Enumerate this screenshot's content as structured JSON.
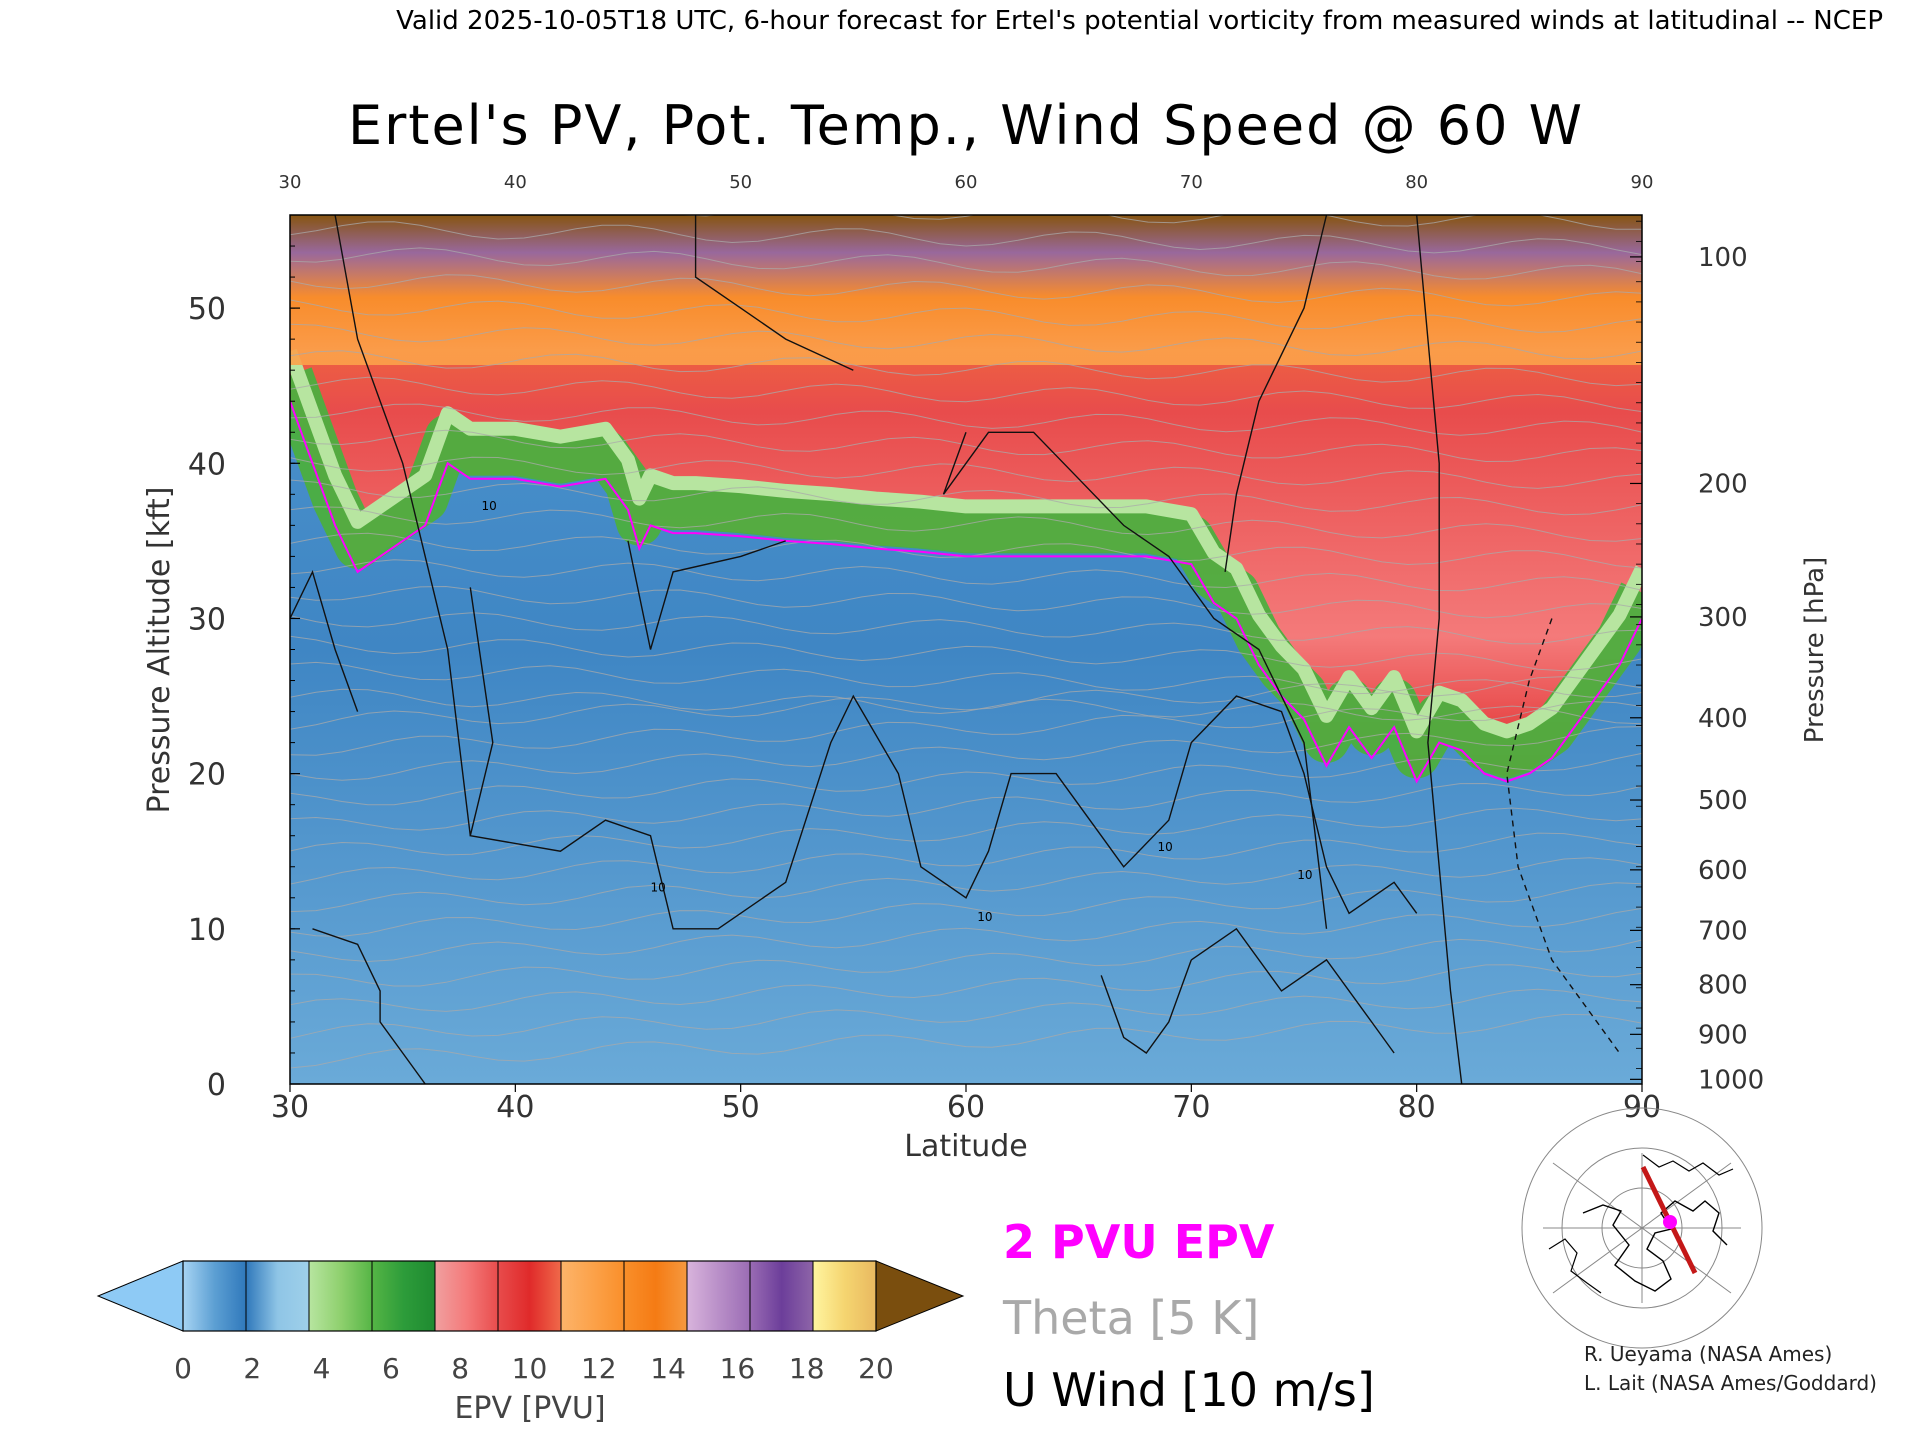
{
  "header": {
    "valid_line": "Valid 2025-10-05T18 UTC, 6-hour forecast for Ertel's potential vorticity from measured winds at latitudinal -- NCEP"
  },
  "chart_data": {
    "type": "heatmap",
    "title": "Ertel's PV, Pot. Temp., Wind Speed @ 60 W",
    "xlabel": "Latitude",
    "ylabel": "Pressure Altitude [kft]",
    "y2label": "Pressure [hPa]",
    "xlim": [
      30,
      90
    ],
    "ylim": [
      0,
      56
    ],
    "x_ticks": [
      "30",
      "40",
      "50",
      "60",
      "70",
      "80",
      "90"
    ],
    "y_ticks": [
      "0",
      "10",
      "20",
      "30",
      "40",
      "50"
    ],
    "pressure_ticks": [
      {
        "label": "100",
        "kft": 53.3
      },
      {
        "label": "200",
        "kft": 38.7
      },
      {
        "label": "300",
        "kft": 30.1
      },
      {
        "label": "400",
        "kft": 23.6
      },
      {
        "label": "500",
        "kft": 18.3
      },
      {
        "label": "600",
        "kft": 13.8
      },
      {
        "label": "700",
        "kft": 9.9
      },
      {
        "label": "800",
        "kft": 6.4
      },
      {
        "label": "900",
        "kft": 3.2
      },
      {
        "label": "1000",
        "kft": 0.3
      }
    ],
    "tropopause_2pvu": {
      "name": "2 PVU EPV",
      "lat": [
        30,
        31,
        32,
        33,
        34,
        35,
        36,
        37,
        38,
        40,
        42,
        44,
        45,
        45.5,
        46,
        47,
        48,
        50,
        52,
        54,
        56,
        58,
        60,
        62,
        64,
        66,
        68,
        70,
        71,
        72,
        73,
        74,
        75,
        76,
        77,
        78,
        79,
        80,
        81,
        82,
        83,
        84,
        85,
        86,
        87,
        88,
        89,
        90
      ],
      "kft": [
        44,
        40,
        36,
        33,
        34,
        35,
        36,
        40,
        39,
        39,
        38.5,
        39,
        37,
        34.5,
        36,
        35.5,
        35.5,
        35.3,
        35,
        34.8,
        34.5,
        34.3,
        34,
        34,
        34,
        34,
        34,
        33.5,
        31,
        30,
        27,
        25,
        23.5,
        20.5,
        23,
        21,
        23,
        19.5,
        22,
        21.5,
        20,
        19.5,
        20,
        21,
        23,
        25,
        27,
        30
      ]
    },
    "wind_contour_label": "10",
    "theta_label": "Theta [5 K]",
    "wind_label": "U Wind [10 m/s]",
    "colorbar": {
      "label": "EPV [PVU]",
      "ticks": [
        "0",
        "2",
        "4",
        "6",
        "8",
        "10",
        "12",
        "14",
        "16",
        "18",
        "20"
      ],
      "under_color": "#8ecaf5",
      "over_color": "#7a4e0e",
      "segments": [
        [
          "#a7d4f3",
          "#5c9fd3",
          "#2f78bb"
        ],
        [
          "#2f78bb",
          "#8fc5e6",
          "#9fd0ea"
        ],
        [
          "#b7e5a0",
          "#8fd06e",
          "#55b545"
        ],
        [
          "#55b545",
          "#2d9c3a",
          "#1e8a30"
        ],
        [
          "#f0a0a0",
          "#f47a7a",
          "#e84c4c"
        ],
        [
          "#e84c4c",
          "#e02a2a",
          "#f06a4a"
        ],
        [
          "#fdb46a",
          "#fca24a",
          "#f98f2a"
        ],
        [
          "#f98f2a",
          "#f57b14",
          "#f59a40"
        ],
        [
          "#d8b4dc",
          "#b98fc8",
          "#9a6cb4"
        ],
        [
          "#9a6cb4",
          "#6c3e9a",
          "#8e65a8"
        ],
        [
          "#fff5a0",
          "#f5d570",
          "#e8b860"
        ]
      ]
    }
  },
  "legend": {
    "pvu": "2 PVU EPV",
    "theta": "Theta [5 K]",
    "wind": "U Wind [10 m/s]"
  },
  "credits": {
    "line1": "R. Ueyama (NASA Ames)",
    "line2": "L. Lait (NASA Ames/Goddard)"
  },
  "colors": {
    "pvu_magenta": "#ff00ff",
    "theta_gray": "#a9a9a9",
    "trajectory_red": "#c41818"
  },
  "icons": {
    "inset_map": "polar-map-icon"
  }
}
